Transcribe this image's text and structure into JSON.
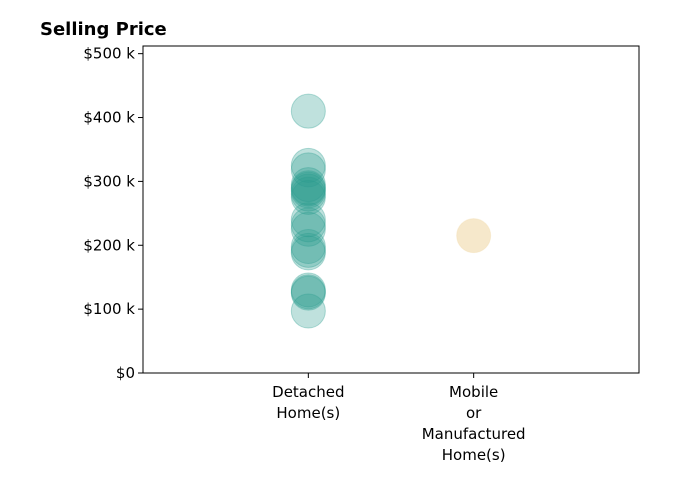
{
  "chart_data": {
    "type": "scatter",
    "title": "Selling Price",
    "xlabel": "",
    "ylabel": "",
    "categories": [
      [
        "Detached",
        "Home(s)"
      ],
      [
        "Mobile",
        "or",
        "Manufactured",
        "Home(s)"
      ]
    ],
    "xlim": [
      -1,
      2
    ],
    "ylim": [
      0,
      512000
    ],
    "y_ticks": [
      {
        "value": 0,
        "label": "$0"
      },
      {
        "value": 100000,
        "label": "$100 k"
      },
      {
        "value": 200000,
        "label": "$200 k"
      },
      {
        "value": 300000,
        "label": "$300 k"
      },
      {
        "value": 400000,
        "label": "$400 k"
      },
      {
        "value": 500000,
        "label": "$500 k"
      }
    ],
    "grid": false,
    "legend": "none",
    "series": [
      {
        "category_index": 0,
        "color": "#2a9d8f",
        "values": [
          410000,
          325000,
          318000,
          295000,
          290000,
          288000,
          285000,
          280000,
          275000,
          240000,
          232000,
          225000,
          198000,
          192000,
          188000,
          130000,
          127000,
          125000,
          97000
        ]
      },
      {
        "category_index": 1,
        "color": "#f0d9a8",
        "values": [
          215000
        ]
      }
    ]
  }
}
